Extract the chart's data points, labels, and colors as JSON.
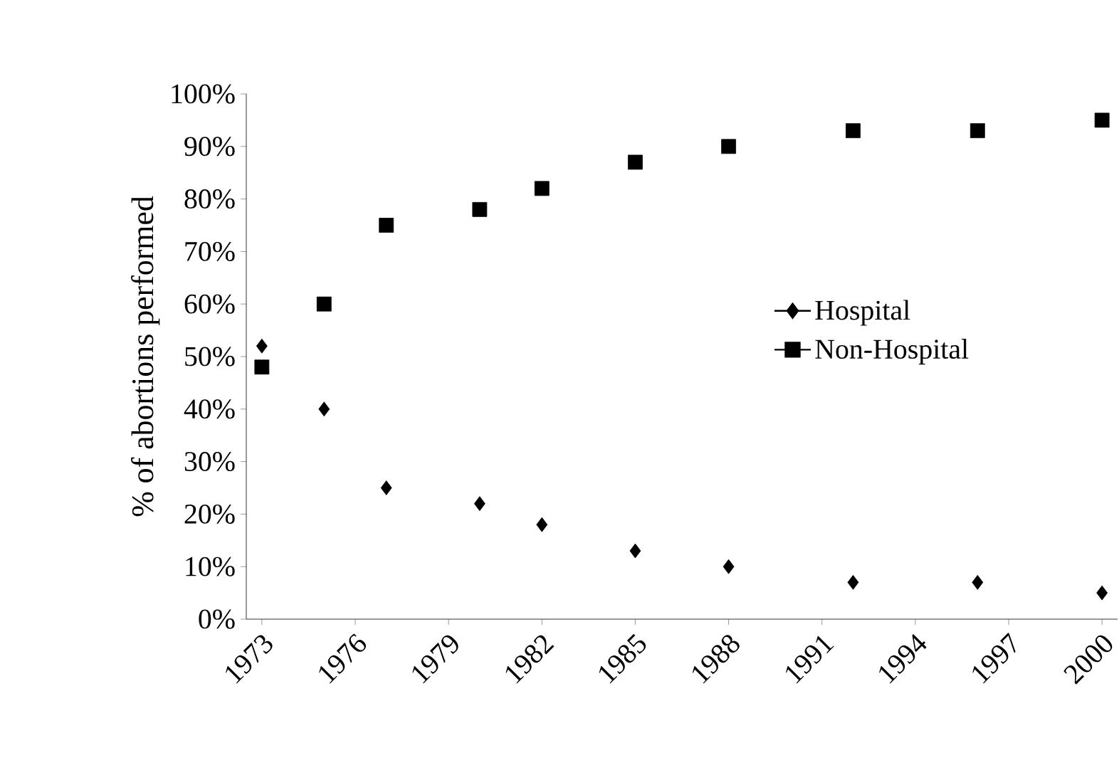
{
  "chart_data": {
    "type": "scatter",
    "ylabel": "% of abortions performed",
    "x": [
      1973,
      1975,
      1977,
      1980,
      1982,
      1985,
      1988,
      1992,
      1996,
      2000
    ],
    "series": [
      {
        "name": "Hospital",
        "color": "#000000",
        "marker": "diamond",
        "values": [
          52,
          40,
          25,
          22,
          18,
          13,
          10,
          7,
          7,
          5
        ]
      },
      {
        "name": "Non-Hospital",
        "color": "#000000",
        "marker": "square",
        "values": [
          48,
          60,
          75,
          78,
          82,
          87,
          90,
          93,
          93,
          95
        ]
      }
    ],
    "xlim": [
      1972.5,
      2000.5
    ],
    "xticks": [
      1973,
      1976,
      1979,
      1982,
      1985,
      1988,
      1991,
      1994,
      1997,
      2000
    ],
    "ylim": [
      0,
      100
    ],
    "yticks": [
      {
        "value": 0,
        "label": "0%"
      },
      {
        "value": 10,
        "label": "10%"
      },
      {
        "value": 20,
        "label": "20%"
      },
      {
        "value": 30,
        "label": "30%"
      },
      {
        "value": 40,
        "label": "40%"
      },
      {
        "value": 50,
        "label": "50%"
      },
      {
        "value": 60,
        "label": "60%"
      },
      {
        "value": 70,
        "label": "70%"
      },
      {
        "value": 80,
        "label": "80%"
      },
      {
        "value": 90,
        "label": "90%"
      },
      {
        "value": 100,
        "label": "100%"
      }
    ],
    "grid": false,
    "legend": "right"
  }
}
